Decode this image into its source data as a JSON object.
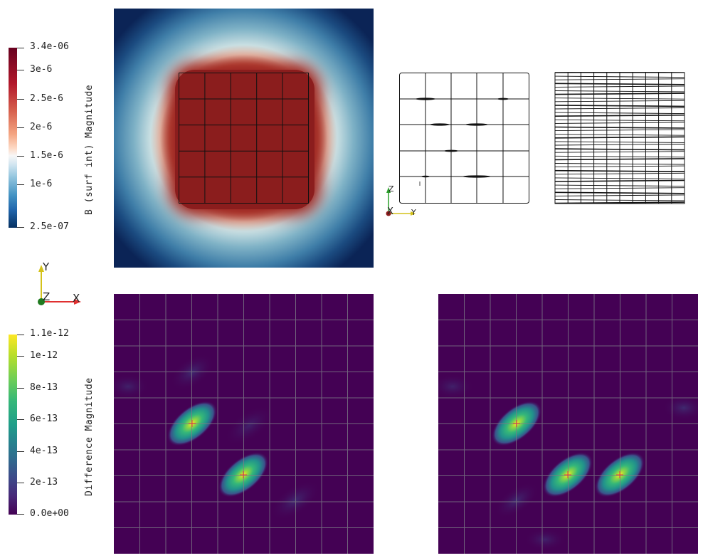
{
  "colorbar_top": {
    "title": "B (surf int) Magnitude",
    "ticks": [
      "3.4e-06",
      "3e-6",
      "2.5e-6",
      "2e-6",
      "1.5e-6",
      "1e-6",
      "2.5e-07"
    ]
  },
  "colorbar_bottom": {
    "title": "Difference Magnitude",
    "ticks": [
      "1.1e-12",
      "1e-12",
      "8e-13",
      "6e-13",
      "4e-13",
      "2e-13",
      "0.0e+00"
    ]
  },
  "axes_left": {
    "y": "Y",
    "z": "Z",
    "x": "X"
  },
  "axes_mesh": {
    "z": "Z",
    "x": "X",
    "y": "Y"
  },
  "colors": {
    "field_high": "#8b1a1a",
    "field_low": "#0a1a4a",
    "diff_bg": "#440154",
    "diff_peak": "#fde725"
  }
}
